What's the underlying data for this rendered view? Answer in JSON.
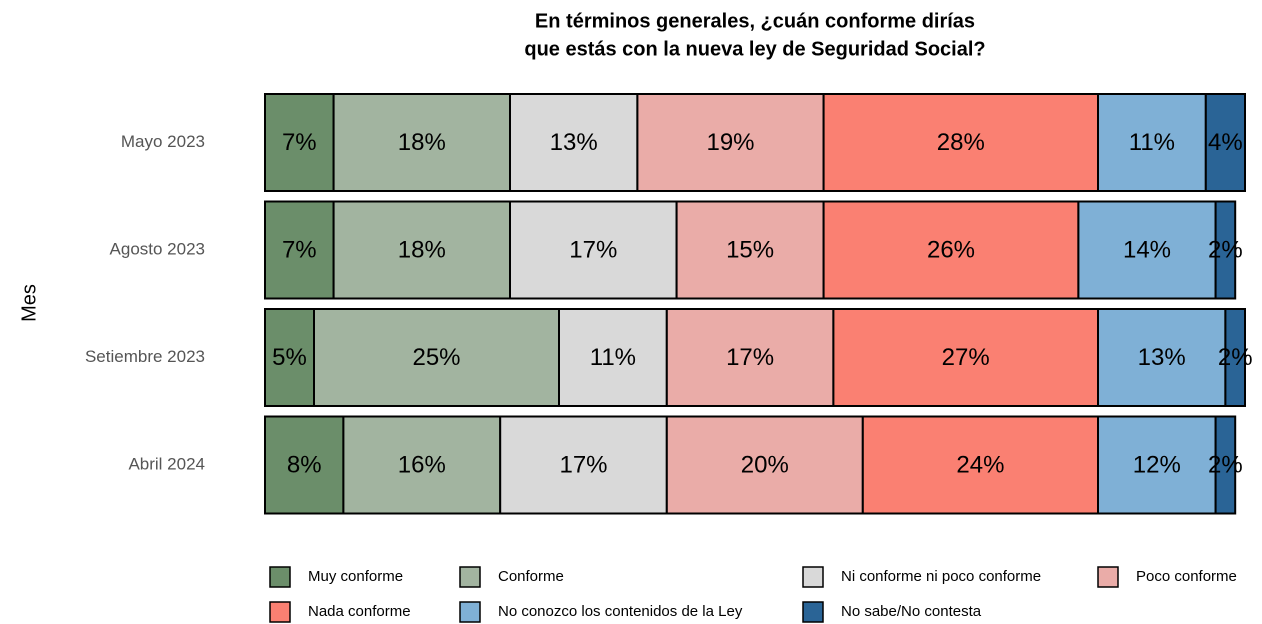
{
  "chart_data": {
    "type": "stacked-barh",
    "title": "En términos generales, ¿cuán conforme dirías",
    "subtitle": "que estás con la nueva ley de Seguridad Social?",
    "y_label": "Mes",
    "categories": [
      "Mayo 2023",
      "Agosto 2023",
      "Setiembre 2023",
      "Abril 2024"
    ],
    "xlim": [
      0,
      100
    ],
    "legend": "bottom",
    "series": [
      {
        "name": "Muy conforme",
        "color": "#6b8e6a",
        "values": [
          7,
          7,
          5,
          8
        ],
        "value_labels": [
          "7%",
          "7%",
          "5%",
          "8%"
        ]
      },
      {
        "name": "Conforme",
        "color": "#a2b4a0",
        "values": [
          18,
          18,
          25,
          16
        ],
        "value_labels": [
          "18%",
          "18%",
          "25%",
          "16%"
        ]
      },
      {
        "name": "Ni conforme ni poco conforme",
        "color": "#d9d9d9",
        "values": [
          13,
          17,
          11,
          17
        ],
        "value_labels": [
          "13%",
          "17%",
          "11%",
          "17%"
        ]
      },
      {
        "name": "Poco conforme",
        "color": "#eaaca8",
        "values": [
          19,
          15,
          17,
          20
        ],
        "value_labels": [
          "19%",
          "15%",
          "17%",
          "20%"
        ]
      },
      {
        "name": "Nada conforme",
        "color": "#fa8072",
        "values": [
          28,
          26,
          27,
          24
        ],
        "value_labels": [
          "28%",
          "26%",
          "27%",
          "24%"
        ]
      },
      {
        "name": "No conozco los contenidos de la Ley",
        "color": "#7fb0d6",
        "values": [
          11,
          14,
          13,
          12
        ],
        "value_labels": [
          "11%",
          "14%",
          "13%",
          "12%"
        ]
      },
      {
        "name": "No sabe/No contesta",
        "color": "#2a6496",
        "values": [
          4,
          2,
          2,
          2
        ],
        "value_labels": [
          "4%",
          "2%",
          "2%",
          "2%"
        ]
      }
    ]
  }
}
